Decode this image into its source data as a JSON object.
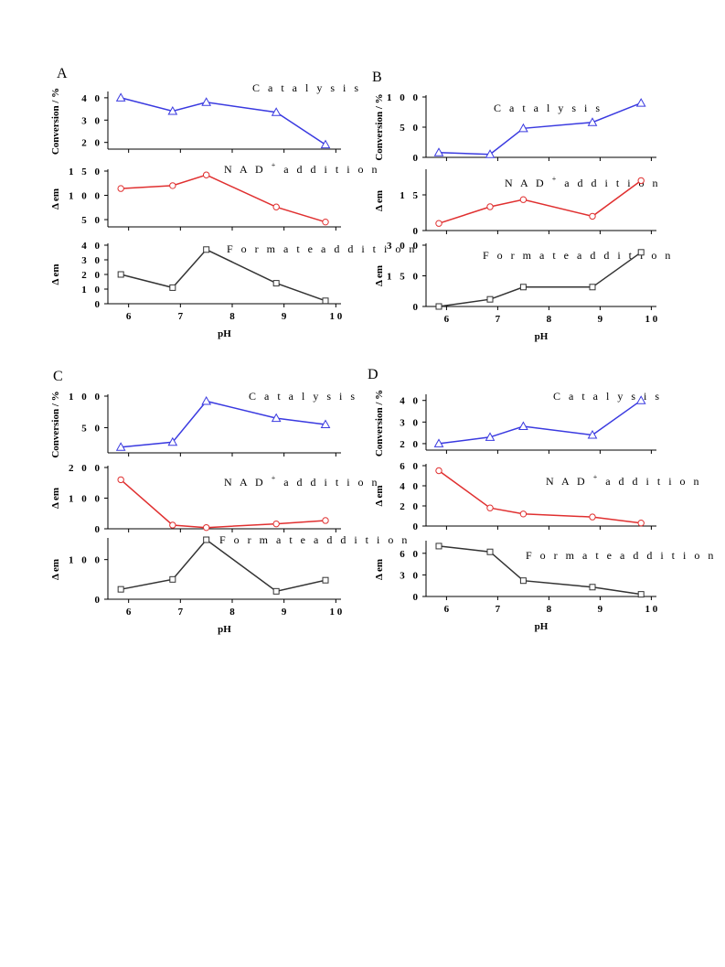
{
  "chart_data": [
    {
      "panel": "A",
      "type": "line",
      "xlabel": "pH",
      "x_ticks": [
        "6",
        "7",
        "8",
        "9",
        "1 0"
      ],
      "xlim": [
        5.6,
        10.1
      ],
      "subplots": [
        {
          "annotation": "C a t a l y s i s",
          "ylabel": "Conversion / %",
          "ylim": [
            17,
            42
          ],
          "y_ticks": [
            {
              "v": 20,
              "label": "2 0"
            },
            {
              "v": 30,
              "label": "3 0"
            },
            {
              "v": 40,
              "label": "4 0"
            }
          ],
          "color": "#3a3ae0",
          "marker": "triangle",
          "x": [
            5.85,
            6.85,
            7.5,
            8.85,
            9.8
          ],
          "y": [
            40,
            34,
            38,
            33.5,
            19
          ]
        },
        {
          "annotation_prefix": "N A D",
          "annotation_sup": "+",
          "annotation_suffix": "a d d i t i o n",
          "ylabel": "Δ em",
          "ylim": [
            35,
            150
          ],
          "y_ticks": [
            {
              "v": 50,
              "label": "5 0"
            },
            {
              "v": 100,
              "label": "1 0 0"
            },
            {
              "v": 150,
              "label": "1 5 0"
            }
          ],
          "color": "#e03030",
          "marker": "circle",
          "x": [
            5.85,
            6.85,
            7.5,
            8.85,
            9.8
          ],
          "y": [
            114,
            120,
            142,
            76,
            45
          ]
        },
        {
          "annotation": "F o r m a t e  a d d i t i o n",
          "ylabel": "Δ em",
          "ylim": [
            0,
            40
          ],
          "y_ticks": [
            {
              "v": 0,
              "label": "0"
            },
            {
              "v": 10,
              "label": "1 0"
            },
            {
              "v": 20,
              "label": "2 0"
            },
            {
              "v": 30,
              "label": "3 0"
            },
            {
              "v": 40,
              "label": "4 0"
            }
          ],
          "color": "#333333",
          "marker": "square",
          "x": [
            5.85,
            6.85,
            7.5,
            8.85,
            9.8
          ],
          "y": [
            20,
            11,
            37,
            14,
            2
          ]
        }
      ]
    },
    {
      "panel": "B",
      "type": "line",
      "xlabel": "pH",
      "x_ticks": [
        "6",
        "7",
        "8",
        "9",
        "1 0"
      ],
      "xlim": [
        5.6,
        10.1
      ],
      "subplots": [
        {
          "annotation": "C a t a l y s i s",
          "ylabel": "Conversion / %",
          "ylim": [
            0,
            100
          ],
          "y_ticks": [
            {
              "v": 0,
              "label": "0"
            },
            {
              "v": 50,
              "label": "5 0"
            },
            {
              "v": 100,
              "label": "1 0 0"
            }
          ],
          "color": "#3a3ae0",
          "marker": "triangle",
          "x": [
            5.85,
            6.85,
            7.5,
            8.85,
            9.8
          ],
          "y": [
            8,
            5,
            48,
            58,
            90
          ]
        },
        {
          "annotation_prefix": "N A D",
          "annotation_sup": "+",
          "annotation_suffix": "a d d i t i o n",
          "ylabel": "Δ em",
          "ylim": [
            0,
            25
          ],
          "y_ticks": [
            {
              "v": 0,
              "label": "0"
            },
            {
              "v": 15,
              "label": "1 5"
            }
          ],
          "color": "#e03030",
          "marker": "circle",
          "x": [
            5.85,
            6.85,
            7.5,
            8.85,
            9.8
          ],
          "y": [
            3,
            10,
            13,
            6,
            21
          ]
        },
        {
          "annotation": "F o r m a t e  a d d i t i o n",
          "ylabel": "Δ em",
          "ylim": [
            0,
            300
          ],
          "y_ticks": [
            {
              "v": 0,
              "label": "0"
            },
            {
              "v": 150,
              "label": "1 5 0"
            },
            {
              "v": 300,
              "label": "3 0 0"
            }
          ],
          "color": "#333333",
          "marker": "square",
          "x": [
            5.85,
            6.85,
            7.5,
            8.85,
            9.8
          ],
          "y": [
            0,
            35,
            95,
            95,
            265
          ]
        }
      ]
    },
    {
      "panel": "C",
      "type": "line",
      "xlabel": "pH",
      "x_ticks": [
        "6",
        "7",
        "8",
        "9",
        "1 0"
      ],
      "xlim": [
        5.6,
        10.1
      ],
      "subplots": [
        {
          "annotation": "C a t a l y s i s",
          "ylabel": "Conversion / %",
          "ylim": [
            10,
            100
          ],
          "y_ticks": [
            {
              "v": 50,
              "label": "5 0"
            },
            {
              "v": 100,
              "label": "1 0 0"
            }
          ],
          "color": "#3a3ae0",
          "marker": "triangle",
          "x": [
            5.85,
            6.85,
            7.5,
            8.85,
            9.8
          ],
          "y": [
            19,
            27,
            92,
            65,
            55
          ]
        },
        {
          "annotation_prefix": "N A D",
          "annotation_sup": "+",
          "annotation_suffix": "a d d i t i o n",
          "ylabel": "Δ em",
          "ylim": [
            0,
            200
          ],
          "y_ticks": [
            {
              "v": 0,
              "label": "0"
            },
            {
              "v": 100,
              "label": "1 0 0"
            },
            {
              "v": 200,
              "label": "2 0 0"
            }
          ],
          "color": "#e03030",
          "marker": "circle",
          "x": [
            5.85,
            6.85,
            7.5,
            8.85,
            9.8
          ],
          "y": [
            160,
            12,
            4,
            16,
            27
          ]
        },
        {
          "annotation": "F o r m a t e  a d d i t i o n",
          "ylabel": "Δ em",
          "ylim": [
            0,
            150
          ],
          "y_ticks": [
            {
              "v": 0,
              "label": "0"
            },
            {
              "v": 100,
              "label": "1 0 0"
            }
          ],
          "color": "#333333",
          "marker": "square",
          "x": [
            5.85,
            6.85,
            7.5,
            8.85,
            9.8
          ],
          "y": [
            25,
            50,
            150,
            20,
            48
          ]
        }
      ]
    },
    {
      "panel": "D",
      "type": "line",
      "xlabel": "pH",
      "x_ticks": [
        "6",
        "7",
        "8",
        "9",
        "1 0"
      ],
      "xlim": [
        5.6,
        10.1
      ],
      "subplots": [
        {
          "annotation": "C a t a l y s i s",
          "ylabel": "Conversion / %",
          "ylim": [
            17,
            42
          ],
          "y_ticks": [
            {
              "v": 20,
              "label": "2 0"
            },
            {
              "v": 30,
              "label": "3 0"
            },
            {
              "v": 40,
              "label": "4 0"
            }
          ],
          "color": "#3a3ae0",
          "marker": "triangle",
          "x": [
            5.85,
            6.85,
            7.5,
            8.85,
            9.8
          ],
          "y": [
            20,
            23,
            28,
            24,
            40
          ]
        },
        {
          "annotation_prefix": "N A D",
          "annotation_sup": "+",
          "annotation_suffix": "a d d i t i o n",
          "ylabel": "Δ em",
          "ylim": [
            0,
            60
          ],
          "y_ticks": [
            {
              "v": 0,
              "label": "0"
            },
            {
              "v": 20,
              "label": "2 0"
            },
            {
              "v": 40,
              "label": "4 0"
            },
            {
              "v": 60,
              "label": "6 0"
            }
          ],
          "color": "#e03030",
          "marker": "circle",
          "x": [
            5.85,
            6.85,
            7.5,
            8.85,
            9.8
          ],
          "y": [
            55,
            18,
            12,
            9,
            3
          ]
        },
        {
          "annotation": "F o r m a t e  a d d i t i o n",
          "ylabel": "Δ em",
          "ylim": [
            0,
            75
          ],
          "y_ticks": [
            {
              "v": 0,
              "label": "0"
            },
            {
              "v": 30,
              "label": "3 0"
            },
            {
              "v": 60,
              "label": "6 0"
            }
          ],
          "color": "#333333",
          "marker": "square",
          "x": [
            5.85,
            6.85,
            7.5,
            8.85,
            9.8
          ],
          "y": [
            70,
            62,
            22,
            13,
            3
          ]
        }
      ]
    }
  ]
}
